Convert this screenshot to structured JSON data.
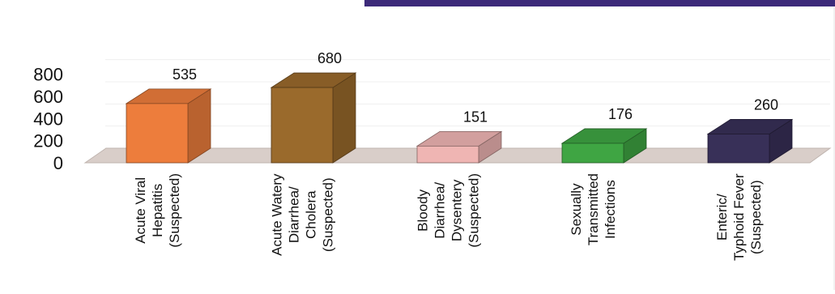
{
  "chart_data": {
    "type": "bar",
    "title": "",
    "xlabel": "",
    "ylabel": "",
    "ylim": [
      0,
      800
    ],
    "yticks": [
      "0",
      "200",
      "400",
      "600",
      "800"
    ],
    "grid": true,
    "legend": "none",
    "categories": [
      [
        "Acute Viral",
        "Hepatitis",
        "(Suspected)"
      ],
      [
        "Acute Watery",
        "Diarrhea/",
        "Cholera",
        "(Suspected)"
      ],
      [
        "Bloody",
        "Diarrhea/",
        "Dysentery",
        "(Suspected)"
      ],
      [
        "Sexually",
        "Transmitted",
        "Infections"
      ],
      [
        "Enteric/",
        "Typhoid Fever",
        "(Suspected)"
      ]
    ],
    "values": [
      535,
      680,
      151,
      176,
      260
    ],
    "colors": [
      "#ED7D3C",
      "#9A6A2C",
      "#EFB5B3",
      "#3FA543",
      "#383058"
    ],
    "floor_color": "#D9CEC9",
    "accent_bar_color": "#3D2A7A"
  }
}
